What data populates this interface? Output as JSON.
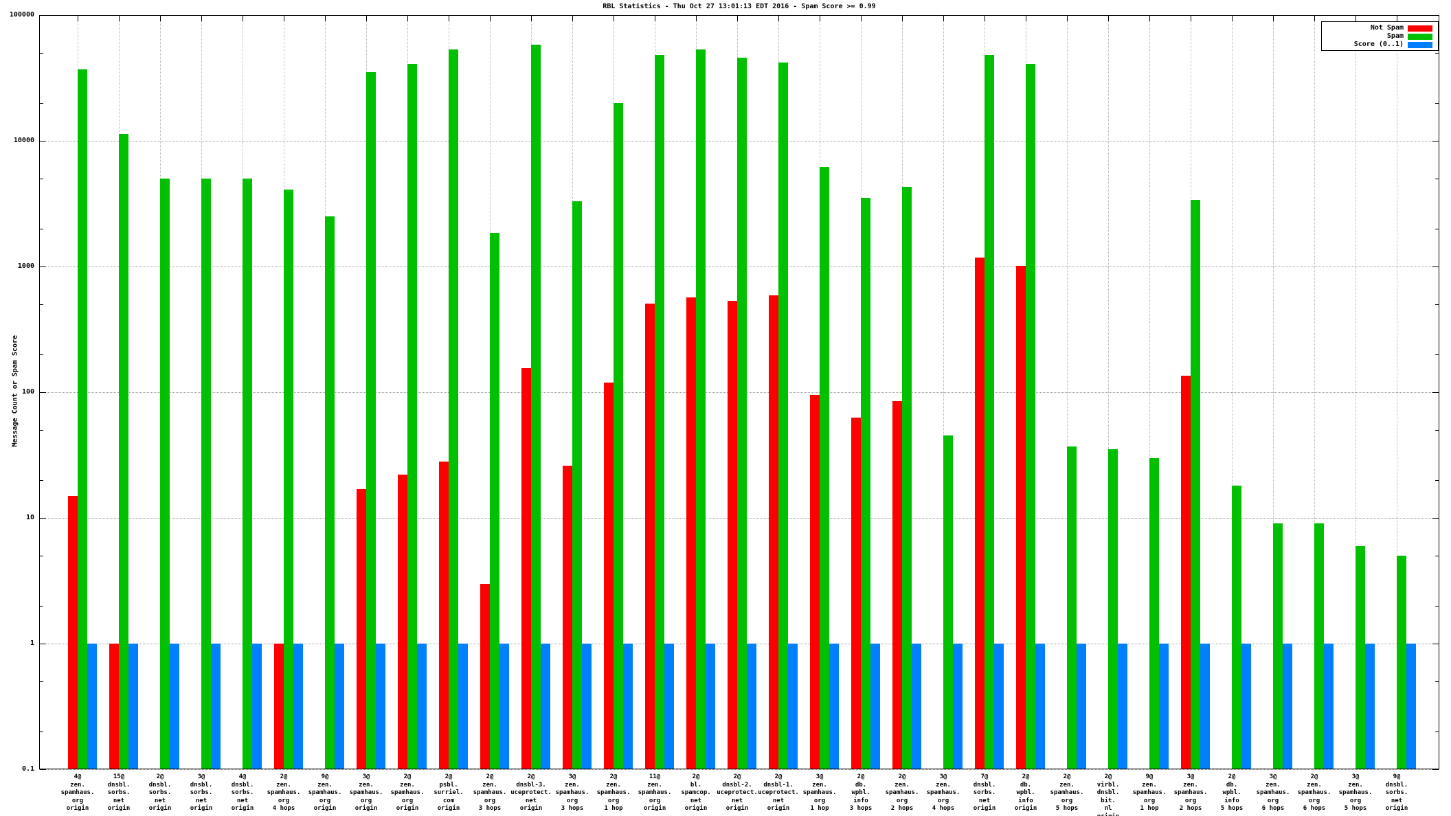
{
  "title": "RBL Statistics - Thu Oct 27 13:01:13 EDT 2016 - Spam Score >= 0.99",
  "ylabel": "Message Count or Spam Score",
  "y_axis_tick_labels": [
    "100000",
    "10000",
    "1000",
    "100",
    "10",
    "1",
    "0.1"
  ],
  "legend": {
    "entries": [
      "Not Spam",
      "Spam",
      "Score (0..1)"
    ]
  },
  "colors": {
    "not_spam": "#ff0000",
    "spam": "#00c000",
    "score": "#0080ff",
    "grid": "#9a9a9a",
    "border": "#000000"
  },
  "chart_data": {
    "type": "bar",
    "title": "RBL Statistics - Thu Oct 27 13:01:13 EDT 2016 - Spam Score >= 0.99",
    "xlabel": "",
    "ylabel": "Message Count or Spam Score",
    "yscale": "log",
    "ylim": [
      0.1,
      100000
    ],
    "grid": true,
    "legend_position": "top-right",
    "categories": [
      [
        "4@",
        "zen.",
        "spamhaus.",
        "org",
        "origin"
      ],
      [
        "15@",
        "dnsbl.",
        "sorbs.",
        "net",
        "origin"
      ],
      [
        "2@",
        "dnsbl.",
        "sorbs.",
        "net",
        "origin"
      ],
      [
        "3@",
        "dnsbl.",
        "sorbs.",
        "net",
        "origin"
      ],
      [
        "4@",
        "dnsbl.",
        "sorbs.",
        "net",
        "origin"
      ],
      [
        "2@",
        "zen.",
        "spamhaus.",
        "org",
        "4 hops"
      ],
      [
        "9@",
        "zen.",
        "spamhaus.",
        "org",
        "origin"
      ],
      [
        "3@",
        "zen.",
        "spamhaus.",
        "org",
        "origin"
      ],
      [
        "2@",
        "zen.",
        "spamhaus.",
        "org",
        "origin"
      ],
      [
        "2@",
        "psbl.",
        "surriel.",
        "com",
        "origin"
      ],
      [
        "2@",
        "zen.",
        "spamhaus.",
        "org",
        "3 hops"
      ],
      [
        "2@",
        "dnsbl-3.",
        "uceprotect.",
        "net",
        "origin"
      ],
      [
        "3@",
        "zen.",
        "spamhaus.",
        "org",
        "3 hops"
      ],
      [
        "2@",
        "zen.",
        "spamhaus.",
        "org",
        "1 hop"
      ],
      [
        "11@",
        "zen.",
        "spamhaus.",
        "org",
        "origin"
      ],
      [
        "2@",
        "bl.",
        "spamcop.",
        "net",
        "origin"
      ],
      [
        "2@",
        "dnsbl-2.",
        "uceprotect.",
        "net",
        "origin"
      ],
      [
        "2@",
        "dnsbl-1.",
        "uceprotect.",
        "net",
        "origin"
      ],
      [
        "3@",
        "zen.",
        "spamhaus.",
        "org",
        "1 hop"
      ],
      [
        "2@",
        "db.",
        "wpbl.",
        "info",
        "3 hops"
      ],
      [
        "2@",
        "zen.",
        "spamhaus.",
        "org",
        "2 hops"
      ],
      [
        "3@",
        "zen.",
        "spamhaus.",
        "org",
        "4 hops"
      ],
      [
        "7@",
        "dnsbl.",
        "sorbs.",
        "net",
        "origin"
      ],
      [
        "2@",
        "db.",
        "wpbl.",
        "info",
        "origin"
      ],
      [
        "2@",
        "zen.",
        "spamhaus.",
        "org",
        "5 hops"
      ],
      [
        "2@",
        "virbl.",
        "dnsbl.",
        "bit.",
        "nl",
        "origin"
      ],
      [
        "9@",
        "zen.",
        "spamhaus.",
        "org",
        "1 hop"
      ],
      [
        "3@",
        "zen.",
        "spamhaus.",
        "org",
        "2 hops"
      ],
      [
        "2@",
        "db.",
        "wpbl.",
        "info",
        "5 hops"
      ],
      [
        "3@",
        "zen.",
        "spamhaus.",
        "org",
        "6 hops"
      ],
      [
        "2@",
        "zen.",
        "spamhaus.",
        "org",
        "6 hops"
      ],
      [
        "3@",
        "zen.",
        "spamhaus.",
        "org",
        "5 hops"
      ],
      [
        "9@",
        "dnsbl.",
        "sorbs.",
        "net",
        "origin"
      ]
    ],
    "series": [
      {
        "name": "Not Spam",
        "color": "#ff0000",
        "values": [
          15,
          1,
          0,
          0,
          0,
          1,
          0,
          17,
          22,
          28,
          3,
          155,
          26,
          120,
          510,
          570,
          530,
          590,
          95,
          63,
          85,
          0,
          1180,
          1010,
          0,
          0,
          0,
          135,
          0,
          0,
          0,
          0,
          0
        ]
      },
      {
        "name": "Spam",
        "color": "#00c000",
        "values": [
          37000,
          11400,
          5000,
          5000,
          5000,
          4100,
          2500,
          35000,
          41000,
          53000,
          1850,
          58000,
          3300,
          20000,
          48000,
          53000,
          46000,
          42000,
          6200,
          3500,
          4300,
          45,
          48000,
          41000,
          37,
          35,
          30,
          3400,
          18,
          9,
          9,
          6,
          5
        ]
      },
      {
        "name": "Score (0..1)",
        "color": "#0080ff",
        "values": [
          1,
          1,
          1,
          1,
          1,
          1,
          1,
          1,
          1,
          1,
          1,
          1,
          1,
          1,
          1,
          1,
          1,
          1,
          1,
          1,
          1,
          1,
          1,
          1,
          1,
          1,
          1,
          1,
          1,
          1,
          1,
          1,
          1
        ]
      }
    ]
  }
}
